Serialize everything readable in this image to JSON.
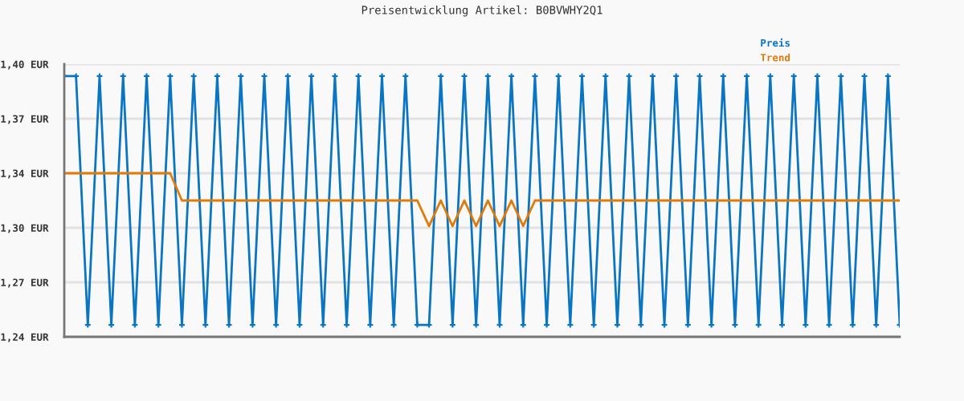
{
  "chart_data": {
    "type": "line",
    "title": "Preisentwicklung Artikel: B0BVWHY2Q1",
    "categories": [
      null,
      null,
      null,
      null,
      null,
      null,
      null,
      null,
      null,
      null,
      null,
      null,
      null,
      null,
      null,
      null,
      null,
      null,
      null,
      null,
      null,
      null,
      null,
      null,
      null,
      null,
      null,
      null,
      null,
      null,
      null,
      null,
      null,
      null,
      null,
      null,
      null,
      null,
      null,
      null,
      null,
      null,
      null,
      null,
      null,
      null,
      null,
      null,
      null,
      null,
      null,
      null,
      null,
      null,
      null,
      null,
      null,
      null,
      null,
      null,
      null,
      null,
      null,
      null,
      null,
      null,
      null,
      null,
      null,
      null,
      null,
      null
    ],
    "series": [
      {
        "name": "Preis",
        "color": "#0a75c2",
        "marker": "cross",
        "values": [
          1.393,
          1.393,
          1.247,
          1.393,
          1.247,
          1.393,
          1.247,
          1.393,
          1.247,
          1.393,
          1.247,
          1.393,
          1.247,
          1.393,
          1.247,
          1.393,
          1.247,
          1.393,
          1.247,
          1.393,
          1.247,
          1.393,
          1.247,
          1.393,
          1.247,
          1.393,
          1.247,
          1.393,
          1.247,
          1.393,
          1.247,
          1.247,
          1.393,
          1.247,
          1.393,
          1.247,
          1.393,
          1.247,
          1.393,
          1.247,
          1.393,
          1.247,
          1.393,
          1.247,
          1.393,
          1.247,
          1.393,
          1.247,
          1.393,
          1.247,
          1.393,
          1.247,
          1.393,
          1.247,
          1.393,
          1.247,
          1.393,
          1.247,
          1.393,
          1.247,
          1.393,
          1.247,
          1.393,
          1.247,
          1.393,
          1.247,
          1.393,
          1.247,
          1.393,
          1.247,
          1.393,
          1.247
        ]
      },
      {
        "name": "Trend",
        "color": "#e07b0a",
        "marker": "none",
        "values": [
          1.336,
          1.336,
          1.336,
          1.336,
          1.336,
          1.336,
          1.336,
          1.336,
          1.336,
          1.336,
          1.32,
          1.32,
          1.32,
          1.32,
          1.32,
          1.32,
          1.32,
          1.32,
          1.32,
          1.32,
          1.32,
          1.32,
          1.32,
          1.32,
          1.32,
          1.32,
          1.32,
          1.32,
          1.32,
          1.32,
          1.32,
          1.305,
          1.32,
          1.305,
          1.32,
          1.305,
          1.32,
          1.305,
          1.32,
          1.305,
          1.32,
          1.32,
          1.32,
          1.32,
          1.32,
          1.32,
          1.32,
          1.32,
          1.32,
          1.32,
          1.32,
          1.32,
          1.32,
          1.32,
          1.32,
          1.32,
          1.32,
          1.32,
          1.32,
          1.32,
          1.32,
          1.32,
          1.32,
          1.32,
          1.32,
          1.32,
          1.32,
          1.32,
          1.32,
          1.32,
          1.32,
          1.32
        ]
      }
    ],
    "ylim": [
      1.24,
      1.4
    ],
    "yticks": [
      {
        "value": 1.24,
        "label": "1,24 EUR"
      },
      {
        "value": 1.272,
        "label": "1,27 EUR"
      },
      {
        "value": 1.304,
        "label": "1,30 EUR"
      },
      {
        "value": 1.336,
        "label": "1,34 EUR"
      },
      {
        "value": 1.368,
        "label": "1,37 EUR"
      },
      {
        "value": 1.4,
        "label": "1,40 EUR"
      }
    ],
    "grid": "y",
    "legend": "top right",
    "line_style": "solid"
  }
}
